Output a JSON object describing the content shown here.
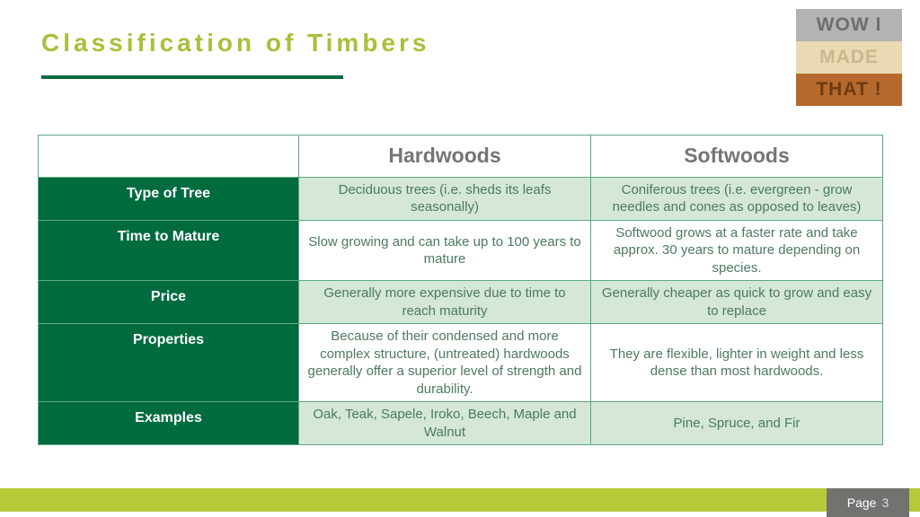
{
  "title": "Classification of Timbers",
  "logo": {
    "line1": "WOW I",
    "line2": "MADE",
    "line3": "THAT !"
  },
  "table": {
    "headers": {
      "corner": "",
      "col1": "Hardwoods",
      "col2": "Softwoods"
    },
    "rows": [
      {
        "label": "Type of Tree",
        "hard": "Deciduous trees (i.e. sheds its leafs seasonally)",
        "soft": "Coniferous trees (i.e. evergreen - grow needles and cones as opposed to leaves)"
      },
      {
        "label": "Time to Mature",
        "hard": "Slow growing and can take up to 100 years to mature",
        "soft": "Softwood grows at a faster rate and take approx. 30 years to mature depending on species."
      },
      {
        "label": "Price",
        "hard": "Generally more expensive due to time to reach maturity",
        "soft": "Generally cheaper as quick to grow and easy to replace"
      },
      {
        "label": "Properties",
        "hard": "Because of their condensed and more complex structure, (untreated) hardwoods generally offer a superior level of strength and durability.",
        "soft": "They are flexible, lighter in weight and less dense than most hardwoods."
      },
      {
        "label": "Examples",
        "hard": "Oak, Teak, Sapele, Iroko, Beech, Maple and Walnut",
        "soft": "Pine, Spruce, and Fir"
      }
    ]
  },
  "footer": {
    "page_label": "Page",
    "page_number": "3"
  },
  "colors": {
    "accent_lime": "#a5c23a",
    "dark_green": "#016b40",
    "cell_light": "#d4e7d9",
    "cell_white": "#ffffff",
    "cell_text": "#4d7a5f",
    "header_text": "#757575",
    "footer_bar": "#b6ca3a",
    "footer_tab": "#72736f",
    "border": "#5da97f"
  },
  "layout": {
    "row_stripe": [
      "light",
      "white",
      "light",
      "white",
      "light"
    ]
  }
}
